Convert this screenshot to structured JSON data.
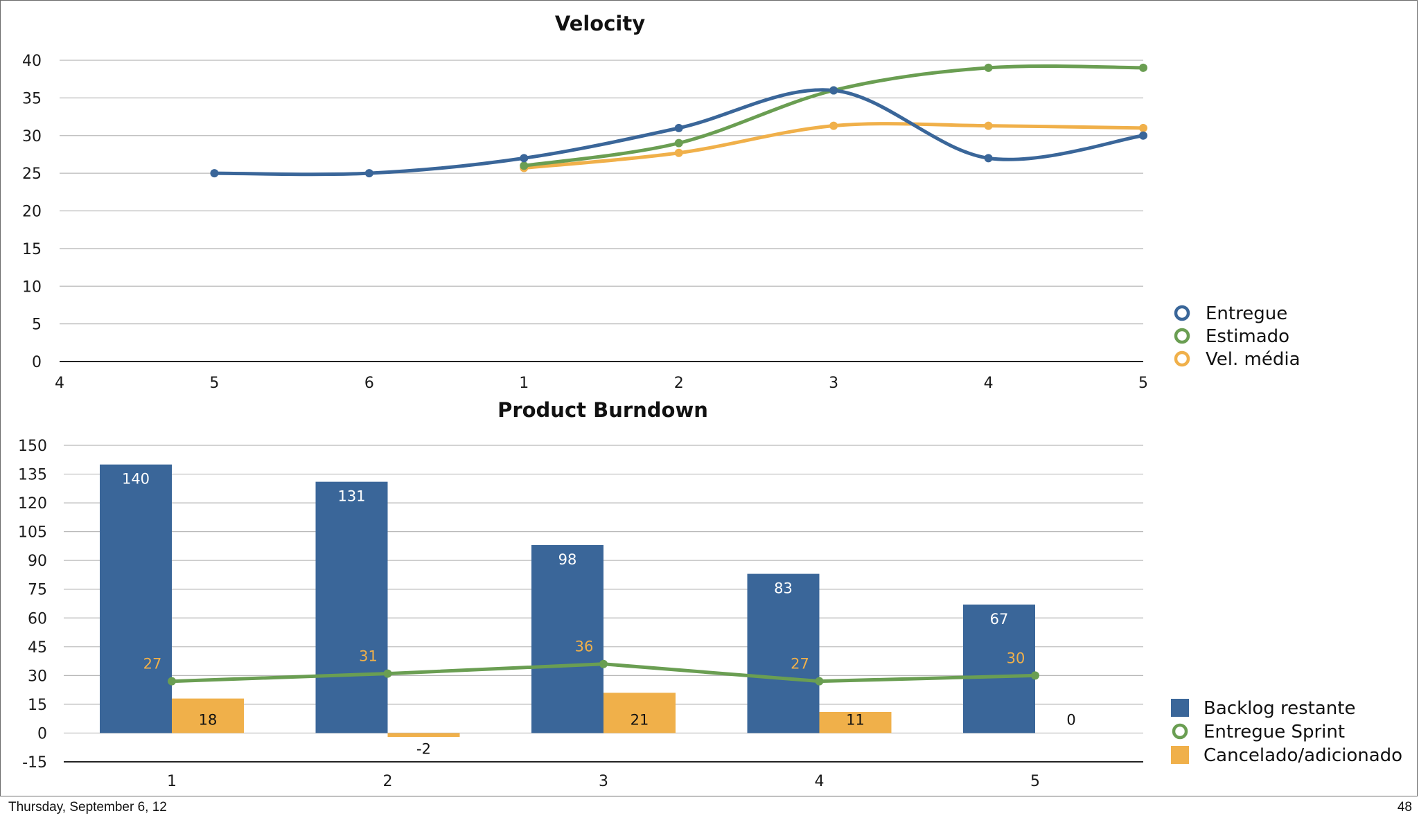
{
  "colors": {
    "blue": "#3a6699",
    "green": "#6a9e52",
    "orange": "#f0b04a",
    "grid": "#b9b9b9",
    "axis": "#222222"
  },
  "footer": {
    "date": "Thursday, September 6, 12",
    "page": "48"
  },
  "chart_data": [
    {
      "type": "line",
      "title": "Velocity",
      "x_tick_labels": [
        "4",
        "5",
        "6",
        "1",
        "2",
        "3",
        "4",
        "5"
      ],
      "y_ticks": [
        0,
        5,
        10,
        15,
        20,
        25,
        30,
        35,
        40
      ],
      "ylim": [
        0,
        40
      ],
      "grid": true,
      "legend_position": "right",
      "series": [
        {
          "name": "Entregue",
          "color": "blue",
          "start_index": 1,
          "values": [
            25,
            25,
            27,
            31,
            36,
            27,
            30
          ]
        },
        {
          "name": "Estimado",
          "color": "green",
          "start_index": 3,
          "values": [
            26,
            29,
            36,
            39,
            39
          ]
        },
        {
          "name": "Vel. média",
          "color": "orange",
          "start_index": 3,
          "values": [
            25.7,
            27.7,
            31.3,
            31.3,
            31
          ]
        }
      ]
    },
    {
      "type": "bar",
      "title": "Product Burndown",
      "categories": [
        "1",
        "2",
        "3",
        "4",
        "5"
      ],
      "y_ticks": [
        -15,
        0,
        15,
        30,
        45,
        60,
        75,
        90,
        105,
        120,
        135,
        150
      ],
      "ylim": [
        -15,
        150
      ],
      "grid": true,
      "legend_position": "right",
      "series": [
        {
          "name": "Backlog restante",
          "kind": "bar",
          "color": "blue",
          "values": [
            140,
            131,
            98,
            83,
            67
          ],
          "labels": [
            "140",
            "131",
            "98",
            "83",
            "67"
          ]
        },
        {
          "name": "Entregue Sprint",
          "kind": "line",
          "color": "green",
          "values": [
            27,
            31,
            36,
            27,
            30
          ],
          "labels": [
            "27",
            "31",
            "36",
            "27",
            "30"
          ]
        },
        {
          "name": "Cancelado/adicionado",
          "kind": "bar",
          "color": "orange",
          "values": [
            18,
            -2,
            21,
            11,
            0
          ],
          "labels": [
            "18",
            "-2",
            "21",
            "11",
            "0"
          ]
        }
      ]
    }
  ]
}
